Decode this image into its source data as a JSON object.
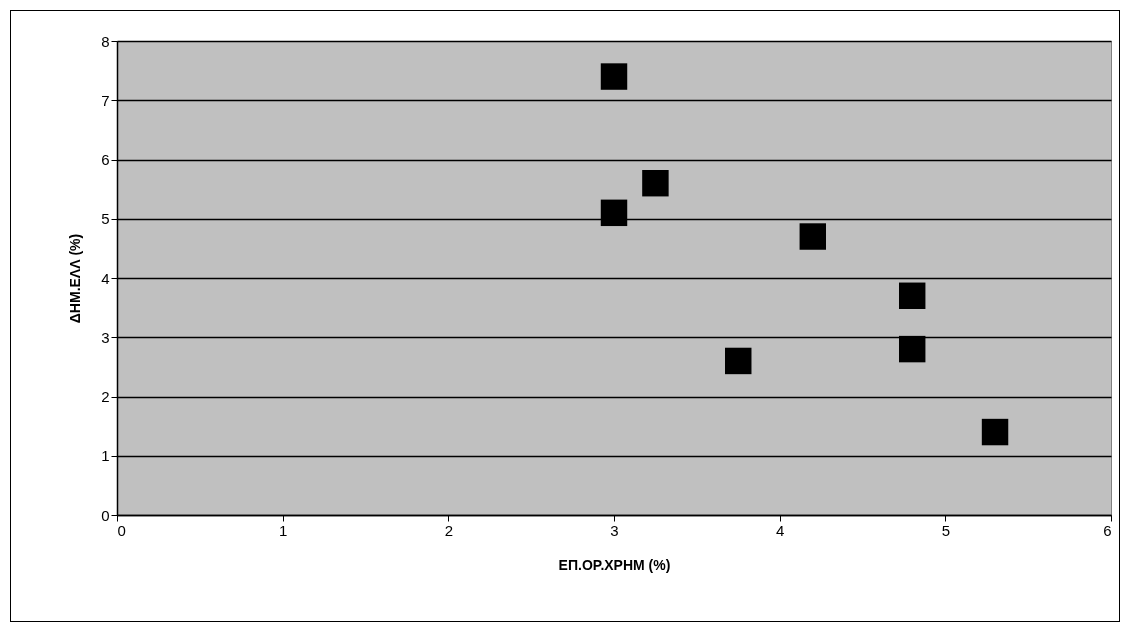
{
  "chart_data": {
    "type": "scatter",
    "xlabel": "ΕΠ.ΟΡ.ΧΡΗΜ (%)",
    "ylabel": "ΔΗΜ.ΕΛΛ (%)",
    "x": [
      3.0,
      3.25,
      3.0,
      4.2,
      4.8,
      4.8,
      3.75,
      5.3
    ],
    "series": [
      {
        "color": "#000000",
        "values": [
          7.4,
          5.6,
          5.1,
          4.7,
          3.7,
          2.8,
          2.6,
          1.4
        ]
      }
    ],
    "xlim": [
      0,
      6
    ],
    "xticks": [
      0,
      1,
      2,
      3,
      4,
      5,
      6
    ],
    "ylim": [
      0,
      8
    ],
    "yticks": [
      0,
      1,
      2,
      3,
      4,
      5,
      6,
      7,
      8
    ],
    "grid": "y",
    "marker": "square",
    "legend": false
  }
}
